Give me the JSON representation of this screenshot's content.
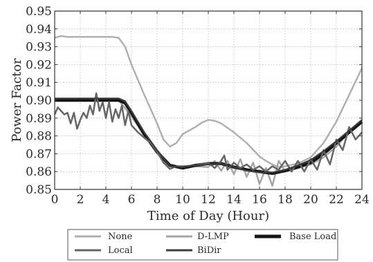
{
  "chart_data": {
    "type": "line",
    "xlabel": "Time of Day (Hour)",
    "ylabel": "Power Factor",
    "xlim": [
      0,
      24
    ],
    "ylim": [
      0.85,
      0.95
    ],
    "xticks": [
      "0",
      "2",
      "4",
      "6",
      "8",
      "10",
      "12",
      "14",
      "16",
      "18",
      "20",
      "22",
      "24"
    ],
    "yticks": [
      "0.85",
      "0.86",
      "0.87",
      "0.88",
      "0.89",
      "0.90",
      "0.91",
      "0.92",
      "0.93",
      "0.94",
      "0.95"
    ],
    "grid": true,
    "legend_position": "bottom",
    "series": [
      {
        "name": "None",
        "color": "#b0b0b0",
        "x": [
          0,
          0.5,
          1,
          2,
          3,
          4,
          4.5,
          5,
          5.5,
          6,
          7,
          8,
          8.5,
          9,
          9.5,
          10,
          11,
          11.5,
          12,
          12.5,
          13,
          14,
          15,
          16,
          16.5,
          17,
          17.5,
          18,
          19,
          20,
          21,
          22,
          23,
          24
        ],
        "y": [
          0.935,
          0.936,
          0.9355,
          0.9355,
          0.9355,
          0.9355,
          0.9355,
          0.935,
          0.93,
          0.92,
          0.903,
          0.887,
          0.878,
          0.874,
          0.876,
          0.881,
          0.885,
          0.8875,
          0.889,
          0.8885,
          0.887,
          0.882,
          0.876,
          0.8685,
          0.866,
          0.864,
          0.8625,
          0.863,
          0.8645,
          0.868,
          0.876,
          0.888,
          0.903,
          0.918
        ]
      },
      {
        "name": "D-LMP",
        "color": "#a6a6a6",
        "x": [
          0,
          1,
          2,
          3,
          4,
          5,
          6,
          7,
          8,
          9,
          10,
          11,
          12,
          12.5,
          13,
          13.5,
          14,
          14.5,
          15,
          15.5,
          16,
          16.5,
          17,
          17.5,
          18,
          19,
          20,
          21,
          22,
          23,
          24
        ],
        "y": [
          0.9,
          0.9,
          0.9,
          0.9,
          0.9,
          0.9,
          0.891,
          0.88,
          0.872,
          0.863,
          0.862,
          0.863,
          0.8625,
          0.866,
          0.8605,
          0.866,
          0.8585,
          0.867,
          0.857,
          0.865,
          0.853,
          0.862,
          0.852,
          0.866,
          0.86,
          0.862,
          0.864,
          0.868,
          0.874,
          0.882,
          0.888
        ]
      },
      {
        "name": "Base Load",
        "color": "#151515",
        "x": [
          0,
          1,
          2,
          3,
          4,
          5,
          5.5,
          6,
          7,
          8,
          9,
          10,
          11,
          12,
          13,
          14,
          15,
          16,
          17,
          18,
          19,
          20,
          21,
          22,
          23,
          24
        ],
        "y": [
          0.9,
          0.9,
          0.9,
          0.9,
          0.9,
          0.9,
          0.8985,
          0.893,
          0.881,
          0.871,
          0.8635,
          0.862,
          0.8635,
          0.8645,
          0.8645,
          0.8625,
          0.861,
          0.86,
          0.859,
          0.8605,
          0.8625,
          0.865,
          0.87,
          0.876,
          0.882,
          0.888
        ]
      },
      {
        "name": "Local",
        "color": "#666666",
        "x": [
          0,
          0.25,
          0.5,
          0.75,
          1,
          1.25,
          1.5,
          1.75,
          2,
          2.25,
          2.5,
          2.75,
          3,
          3.25,
          3.5,
          3.75,
          4,
          4.25,
          4.5,
          4.75,
          5,
          5.25,
          5.5,
          5.75,
          6,
          6.5,
          7,
          7.5,
          8,
          8.5,
          9,
          9.5,
          10,
          11,
          12,
          12.5,
          13,
          13.25,
          13.5,
          14,
          14.5,
          15,
          15.5,
          16,
          16.5,
          17,
          17.5,
          18,
          18.5,
          19,
          19.5,
          20,
          20.5,
          21,
          21.5,
          22,
          22.5,
          23,
          23.5,
          24
        ],
        "y": [
          0.892,
          0.896,
          0.894,
          0.892,
          0.893,
          0.887,
          0.893,
          0.884,
          0.889,
          0.893,
          0.89,
          0.897,
          0.892,
          0.904,
          0.894,
          0.899,
          0.89,
          0.899,
          0.888,
          0.895,
          0.89,
          0.897,
          0.886,
          0.894,
          0.886,
          0.882,
          0.879,
          0.876,
          0.871,
          0.865,
          0.8615,
          0.863,
          0.863,
          0.8635,
          0.865,
          0.862,
          0.866,
          0.869,
          0.861,
          0.865,
          0.862,
          0.864,
          0.861,
          0.863,
          0.86,
          0.863,
          0.861,
          0.866,
          0.86,
          0.866,
          0.86,
          0.867,
          0.861,
          0.872,
          0.864,
          0.878,
          0.872,
          0.885,
          0.878,
          0.882
        ]
      },
      {
        "name": "BiDir",
        "color": "#3c3c3c",
        "x": [
          0,
          1,
          2,
          3,
          4,
          5,
          5.5,
          6,
          7,
          8,
          9,
          10,
          11,
          12,
          13,
          14,
          15,
          16,
          17,
          18,
          19,
          20,
          21,
          22,
          23,
          24
        ],
        "y": [
          0.901,
          0.901,
          0.901,
          0.901,
          0.901,
          0.901,
          0.8995,
          0.894,
          0.882,
          0.872,
          0.863,
          0.8625,
          0.8635,
          0.864,
          0.8645,
          0.8625,
          0.8605,
          0.8595,
          0.8595,
          0.861,
          0.8635,
          0.8665,
          0.8715,
          0.877,
          0.883,
          0.889
        ]
      }
    ]
  }
}
